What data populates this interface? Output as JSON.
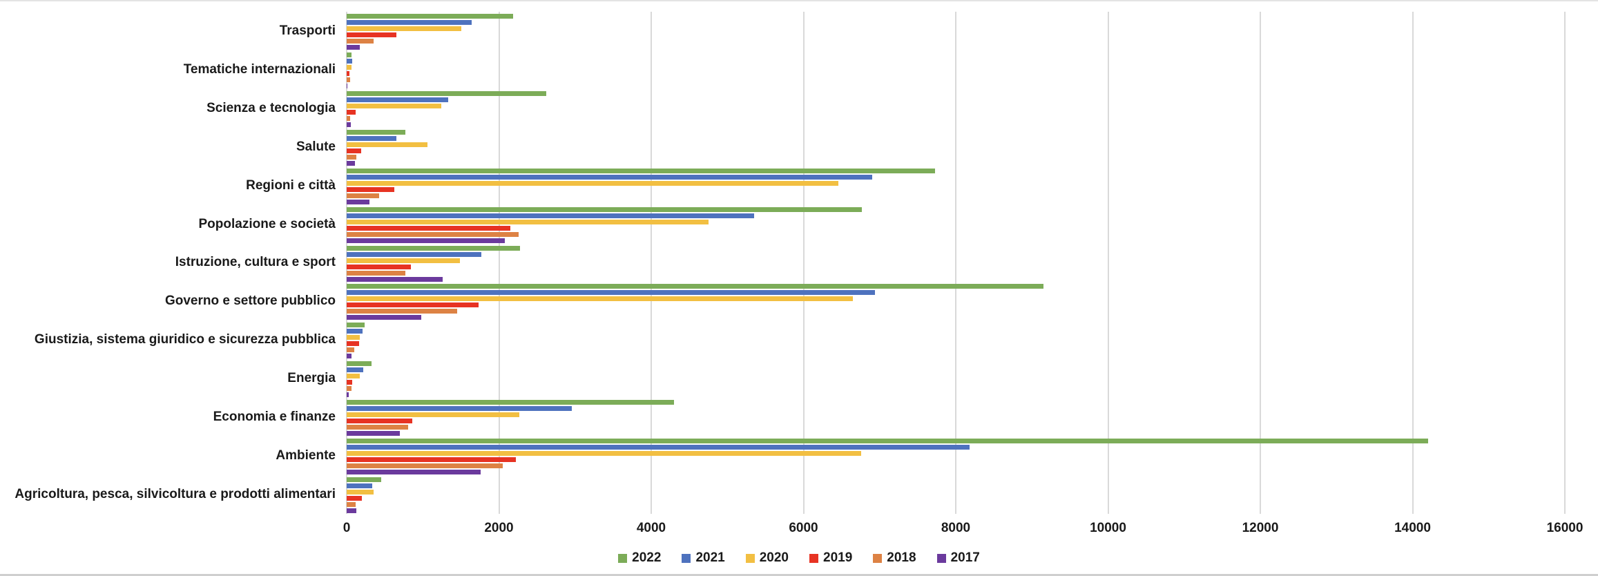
{
  "chart_data": {
    "type": "bar",
    "orientation": "horizontal",
    "title": "",
    "xlabel": "",
    "ylabel": "",
    "xlim": [
      0,
      16000
    ],
    "x_ticks": [
      "0",
      "2000",
      "4000",
      "6000",
      "8000",
      "10000",
      "12000",
      "14000",
      "16000"
    ],
    "x_tick_values": [
      0,
      2000,
      4000,
      6000,
      8000,
      10000,
      12000,
      14000,
      16000
    ],
    "grid": true,
    "legend_position": "bottom",
    "categories": [
      "Trasporti",
      "Tematiche internazionali",
      "Scienza e tecnologia",
      "Salute",
      "Regioni e città",
      "Popolazione e società",
      "Istruzione, cultura e sport",
      "Governo e settore pubblico",
      "Giustizia, sistema giuridico e sicurezza pubblica",
      "Energia",
      "Economia e finanze",
      "Ambiente",
      "Agricoltura, pesca, silvicoltura e prodotti alimentari"
    ],
    "series": [
      {
        "name": "2022",
        "color": "#7cac58",
        "values": [
          2190,
          60,
          2620,
          770,
          7730,
          6765,
          2280,
          9150,
          240,
          330,
          4300,
          14200,
          450
        ]
      },
      {
        "name": "2021",
        "color": "#4e72be",
        "values": [
          1640,
          70,
          1330,
          650,
          6900,
          5350,
          1765,
          6940,
          210,
          215,
          2960,
          8180,
          340
        ]
      },
      {
        "name": "2020",
        "color": "#f2bf42",
        "values": [
          1505,
          60,
          1245,
          1060,
          6460,
          4750,
          1490,
          6650,
          170,
          170,
          2270,
          6760,
          350
        ]
      },
      {
        "name": "2019",
        "color": "#e73323",
        "values": [
          650,
          40,
          115,
          190,
          630,
          2150,
          840,
          1730,
          160,
          75,
          860,
          2220,
          200
        ]
      },
      {
        "name": "2018",
        "color": "#dd8244",
        "values": [
          355,
          45,
          45,
          130,
          430,
          2260,
          770,
          1450,
          100,
          60,
          810,
          2050,
          120
        ]
      },
      {
        "name": "2017",
        "color": "#6b3a9d",
        "values": [
          170,
          10,
          55,
          110,
          300,
          2080,
          1260,
          980,
          60,
          25,
          700,
          1760,
          130
        ]
      }
    ]
  }
}
